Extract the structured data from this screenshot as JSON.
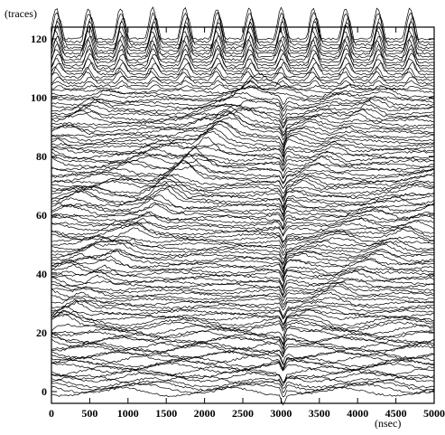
{
  "chart_data": {
    "type": "line",
    "title": "",
    "ylabel": "(traces)",
    "xlabel": "(nsec)",
    "xlim": [
      0,
      5000
    ],
    "ylim": [
      -4,
      124
    ],
    "x_ticks": [
      0,
      500,
      1000,
      1500,
      2000,
      2500,
      3000,
      3500,
      4000,
      4500,
      5000
    ],
    "y_ticks": [
      0,
      20,
      40,
      60,
      80,
      100,
      120
    ],
    "x_tick_labels": [
      "0",
      "500",
      "1000",
      "1500",
      "2000",
      "2500",
      "3000",
      "3500",
      "4000",
      "4500",
      "5000"
    ],
    "y_tick_labels": [
      "0",
      "20",
      "40",
      "60",
      "80",
      "100",
      "120"
    ],
    "grid": false,
    "legend": "none",
    "line_color": "#000000",
    "description": "Stacked oscilloscope-style trace plot; each trace is offset vertically by its index (approximately 0 to 120 traces). The bottom and middle traces show rising diagonal ridges; the top traces oscillate with a period of roughly 400 nsec.",
    "series_summary": {
      "trace_count": 120,
      "trace_spacing": 1,
      "top_oscillation_period_nsec": 420,
      "top_oscillation_band": [
        103,
        121
      ],
      "reset_times_nsec": [
        0,
        3050
      ],
      "ridge_slopes_traces_per_nsec": [
        0.031,
        0.022,
        0.016
      ],
      "ridge_offsets": [
        [
          0,
          18,
          2
        ],
        [
          0,
          35,
          2
        ],
        [
          0,
          58,
          2
        ],
        [
          0,
          80,
          2
        ],
        [
          3050,
          18,
          2
        ],
        [
          3050,
          40,
          2
        ],
        [
          3050,
          62,
          2
        ],
        [
          3050,
          82,
          2
        ]
      ]
    }
  }
}
